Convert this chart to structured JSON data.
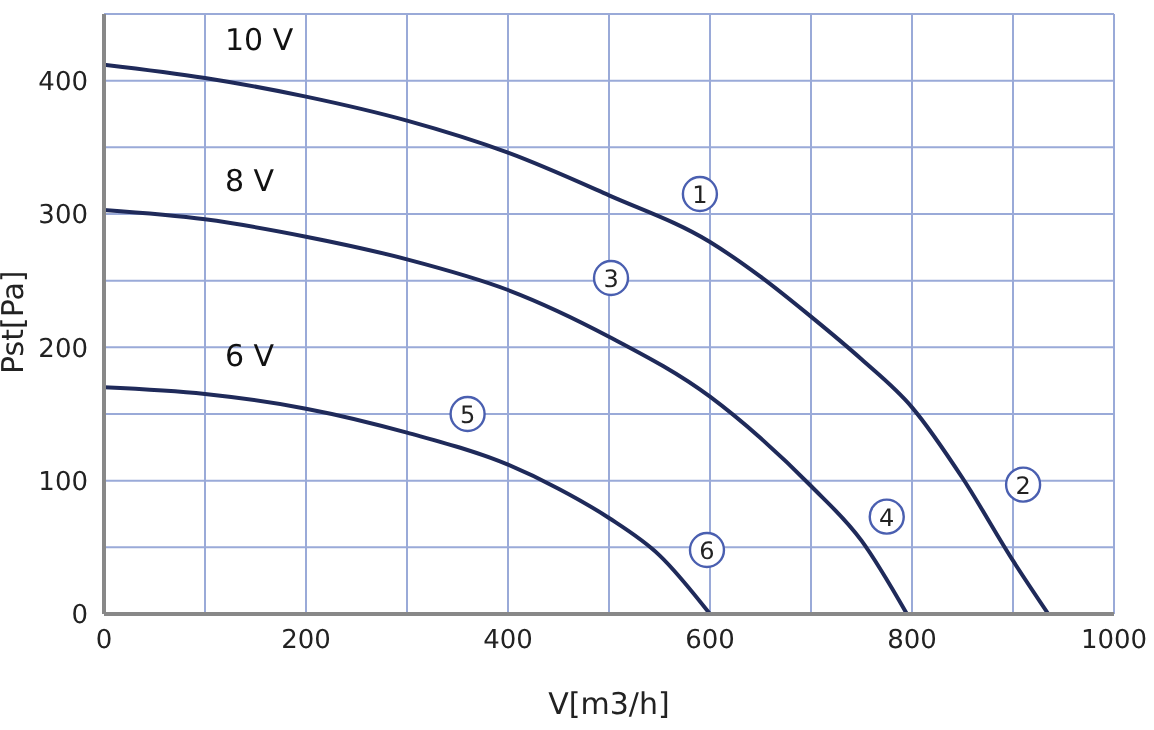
{
  "chart_data": {
    "type": "line",
    "xlabel": "V[m3/h]",
    "ylabel": "Pst[Pa]",
    "xlim": [
      0,
      1000
    ],
    "ylim": [
      0,
      450
    ],
    "xticks": [
      0,
      {
        "value": 100,
        "label": null
      },
      200,
      {
        "value": 300,
        "label": null
      },
      400,
      {
        "value": 500,
        "label": null
      },
      600,
      {
        "value": 700,
        "label": null
      },
      800,
      {
        "value": 900,
        "label": null
      },
      1000
    ],
    "yticks": [
      0,
      {
        "value": 50,
        "label": null
      },
      100,
      {
        "value": 150,
        "label": null
      },
      200,
      {
        "value": 250,
        "label": null
      },
      300,
      {
        "value": 350,
        "label": null
      },
      400,
      {
        "value": 450,
        "label": null
      }
    ],
    "grid": true,
    "legend": false,
    "marker": "none",
    "line_style": "solid",
    "series": [
      {
        "name": "10 V",
        "color": "#1f2a5a",
        "x": [
          0,
          100,
          200,
          300,
          400,
          500,
          600,
          650,
          700,
          750,
          800,
          850,
          900,
          935
        ],
        "values": [
          412,
          402,
          388,
          370,
          346,
          314,
          279,
          253,
          223,
          191,
          155,
          102,
          40,
          0
        ]
      },
      {
        "name": "8 V",
        "color": "#1f2a5a",
        "x": [
          0,
          100,
          200,
          300,
          400,
          500,
          600,
          650,
          700,
          750,
          795
        ],
        "values": [
          303,
          296,
          283,
          266,
          243,
          208,
          163,
          132,
          96,
          55,
          0
        ]
      },
      {
        "name": "6 V",
        "color": "#1f2a5a",
        "x": [
          0,
          100,
          200,
          300,
          400,
          450,
          500,
          550,
          600
        ],
        "values": [
          170,
          165,
          154,
          136,
          112,
          94,
          72,
          44,
          0
        ]
      }
    ],
    "annotations": [
      {
        "text": "1",
        "x": 590,
        "y": 315
      },
      {
        "text": "2",
        "x": 910,
        "y": 97
      },
      {
        "text": "3",
        "x": 502,
        "y": 252
      },
      {
        "text": "4",
        "x": 775,
        "y": 73
      },
      {
        "text": "5",
        "x": 360,
        "y": 150
      },
      {
        "text": "6",
        "x": 597,
        "y": 48
      }
    ]
  }
}
